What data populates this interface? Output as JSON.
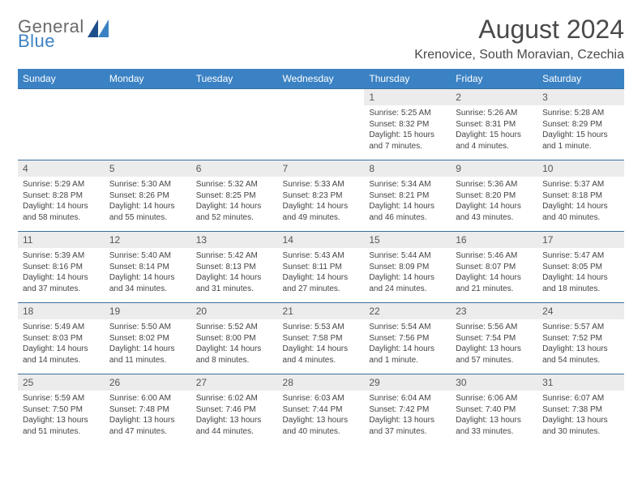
{
  "logo": {
    "line1": "General",
    "line2": "Blue"
  },
  "title": "August 2024",
  "location": "Krenovice, South Moravian, Czechia",
  "colors": {
    "header_bg": "#3b82c4",
    "header_fg": "#ffffff",
    "daynum_bg": "#ececec",
    "row_divider": "#3b6ea0",
    "logo_gray": "#6a6a6a",
    "logo_blue": "#3b82c4"
  },
  "weekdays": [
    "Sunday",
    "Monday",
    "Tuesday",
    "Wednesday",
    "Thursday",
    "Friday",
    "Saturday"
  ],
  "weeks": [
    [
      null,
      null,
      null,
      null,
      {
        "n": "1",
        "sr": "5:25 AM",
        "ss": "8:32 PM",
        "dl": "15 hours and 7 minutes."
      },
      {
        "n": "2",
        "sr": "5:26 AM",
        "ss": "8:31 PM",
        "dl": "15 hours and 4 minutes."
      },
      {
        "n": "3",
        "sr": "5:28 AM",
        "ss": "8:29 PM",
        "dl": "15 hours and 1 minute."
      }
    ],
    [
      {
        "n": "4",
        "sr": "5:29 AM",
        "ss": "8:28 PM",
        "dl": "14 hours and 58 minutes."
      },
      {
        "n": "5",
        "sr": "5:30 AM",
        "ss": "8:26 PM",
        "dl": "14 hours and 55 minutes."
      },
      {
        "n": "6",
        "sr": "5:32 AM",
        "ss": "8:25 PM",
        "dl": "14 hours and 52 minutes."
      },
      {
        "n": "7",
        "sr": "5:33 AM",
        "ss": "8:23 PM",
        "dl": "14 hours and 49 minutes."
      },
      {
        "n": "8",
        "sr": "5:34 AM",
        "ss": "8:21 PM",
        "dl": "14 hours and 46 minutes."
      },
      {
        "n": "9",
        "sr": "5:36 AM",
        "ss": "8:20 PM",
        "dl": "14 hours and 43 minutes."
      },
      {
        "n": "10",
        "sr": "5:37 AM",
        "ss": "8:18 PM",
        "dl": "14 hours and 40 minutes."
      }
    ],
    [
      {
        "n": "11",
        "sr": "5:39 AM",
        "ss": "8:16 PM",
        "dl": "14 hours and 37 minutes."
      },
      {
        "n": "12",
        "sr": "5:40 AM",
        "ss": "8:14 PM",
        "dl": "14 hours and 34 minutes."
      },
      {
        "n": "13",
        "sr": "5:42 AM",
        "ss": "8:13 PM",
        "dl": "14 hours and 31 minutes."
      },
      {
        "n": "14",
        "sr": "5:43 AM",
        "ss": "8:11 PM",
        "dl": "14 hours and 27 minutes."
      },
      {
        "n": "15",
        "sr": "5:44 AM",
        "ss": "8:09 PM",
        "dl": "14 hours and 24 minutes."
      },
      {
        "n": "16",
        "sr": "5:46 AM",
        "ss": "8:07 PM",
        "dl": "14 hours and 21 minutes."
      },
      {
        "n": "17",
        "sr": "5:47 AM",
        "ss": "8:05 PM",
        "dl": "14 hours and 18 minutes."
      }
    ],
    [
      {
        "n": "18",
        "sr": "5:49 AM",
        "ss": "8:03 PM",
        "dl": "14 hours and 14 minutes."
      },
      {
        "n": "19",
        "sr": "5:50 AM",
        "ss": "8:02 PM",
        "dl": "14 hours and 11 minutes."
      },
      {
        "n": "20",
        "sr": "5:52 AM",
        "ss": "8:00 PM",
        "dl": "14 hours and 8 minutes."
      },
      {
        "n": "21",
        "sr": "5:53 AM",
        "ss": "7:58 PM",
        "dl": "14 hours and 4 minutes."
      },
      {
        "n": "22",
        "sr": "5:54 AM",
        "ss": "7:56 PM",
        "dl": "14 hours and 1 minute."
      },
      {
        "n": "23",
        "sr": "5:56 AM",
        "ss": "7:54 PM",
        "dl": "13 hours and 57 minutes."
      },
      {
        "n": "24",
        "sr": "5:57 AM",
        "ss": "7:52 PM",
        "dl": "13 hours and 54 minutes."
      }
    ],
    [
      {
        "n": "25",
        "sr": "5:59 AM",
        "ss": "7:50 PM",
        "dl": "13 hours and 51 minutes."
      },
      {
        "n": "26",
        "sr": "6:00 AM",
        "ss": "7:48 PM",
        "dl": "13 hours and 47 minutes."
      },
      {
        "n": "27",
        "sr": "6:02 AM",
        "ss": "7:46 PM",
        "dl": "13 hours and 44 minutes."
      },
      {
        "n": "28",
        "sr": "6:03 AM",
        "ss": "7:44 PM",
        "dl": "13 hours and 40 minutes."
      },
      {
        "n": "29",
        "sr": "6:04 AM",
        "ss": "7:42 PM",
        "dl": "13 hours and 37 minutes."
      },
      {
        "n": "30",
        "sr": "6:06 AM",
        "ss": "7:40 PM",
        "dl": "13 hours and 33 minutes."
      },
      {
        "n": "31",
        "sr": "6:07 AM",
        "ss": "7:38 PM",
        "dl": "13 hours and 30 minutes."
      }
    ]
  ]
}
